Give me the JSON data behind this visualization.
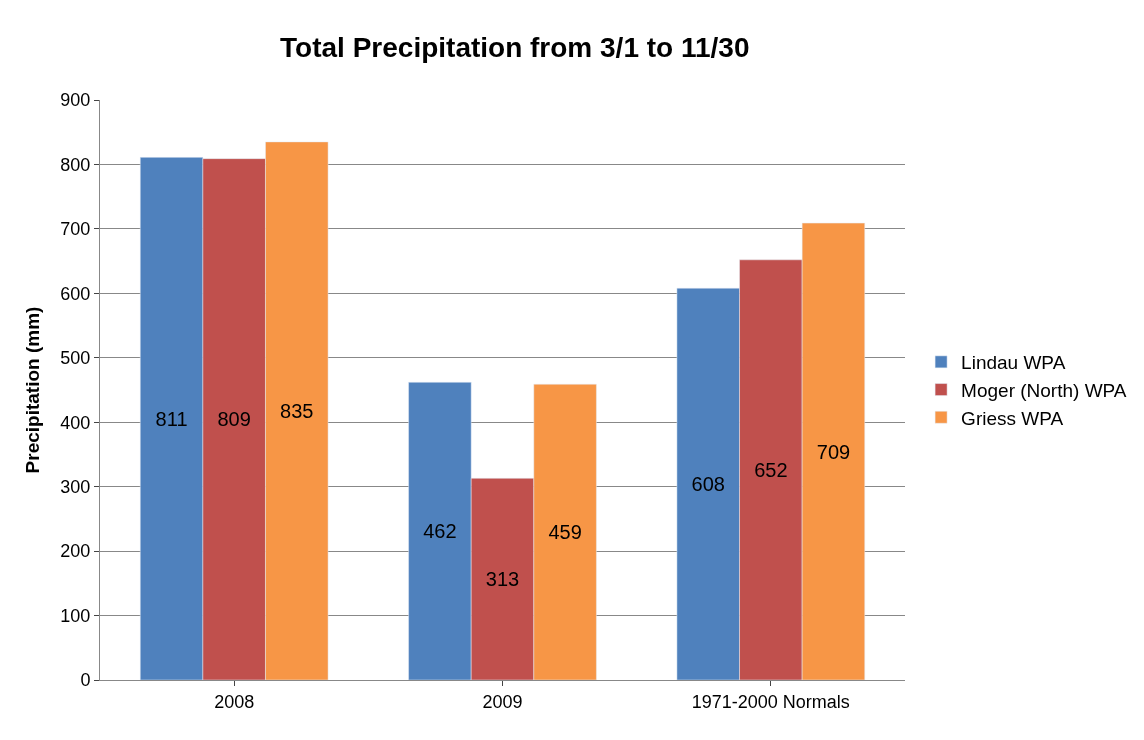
{
  "chart_data": {
    "type": "bar",
    "title": "Total Precipitation from 3/1 to 11/30",
    "ylabel": "Precipitation (mm)",
    "categories": [
      "2008",
      "2009",
      "1971-2000 Normals"
    ],
    "series": [
      {
        "name": "Lindau WPA",
        "color": "#4f81bd",
        "values": [
          811,
          462,
          608
        ]
      },
      {
        "name": "Moger (North) WPA",
        "color": "#c0504d",
        "values": [
          809,
          313,
          652
        ]
      },
      {
        "name": "Griess WPA",
        "color": "#f79646",
        "values": [
          835,
          459,
          709
        ]
      }
    ],
    "ylim": [
      0,
      900
    ],
    "yticks": [
      0,
      100,
      200,
      300,
      400,
      500,
      600,
      700,
      800,
      900
    ],
    "grid": "y",
    "legend": "right",
    "data_labels": true
  }
}
